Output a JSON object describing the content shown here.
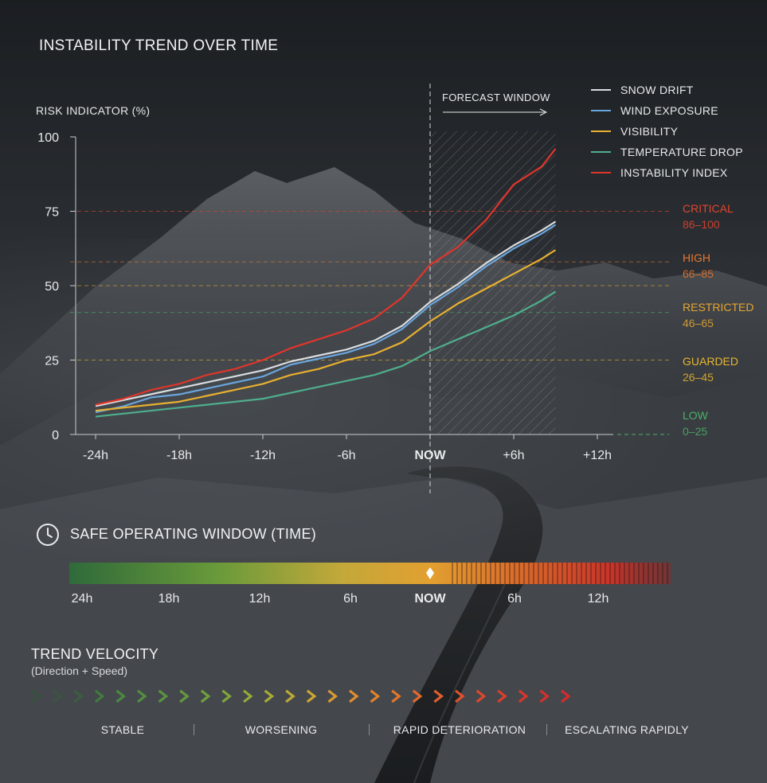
{
  "title": "INSTABILITY TREND OVER TIME",
  "chart_data": {
    "type": "line",
    "ylabel": "RISK INDICATOR (%)",
    "ylim": [
      0,
      100
    ],
    "yticks": [
      "0",
      "25",
      "50",
      "75",
      "100"
    ],
    "xticks": [
      "-24h",
      "-18h",
      "-12h",
      "-6h",
      "NOW",
      "+6h",
      "+12h"
    ],
    "x": [
      -24,
      -22,
      -20,
      -18,
      -16,
      -14,
      -12,
      -10,
      -8,
      -6,
      -4,
      -2,
      0,
      2,
      4,
      6,
      8,
      9
    ],
    "forecast_label": "FORECAST WINDOW",
    "forecast_range": [
      0,
      9
    ],
    "series": [
      {
        "name": "SNOW DRIFT",
        "color": "#d8dde2",
        "values": [
          9,
          11,
          13,
          15,
          17,
          19,
          21,
          24,
          26,
          28,
          31,
          36,
          44,
          50,
          57,
          63,
          68,
          71
        ]
      },
      {
        "name": "WIND EXPOSURE",
        "color": "#6aa6de",
        "values": [
          8,
          10,
          13,
          14,
          16,
          18,
          20,
          24,
          26,
          28,
          31,
          36,
          44,
          50,
          57,
          63,
          68,
          71
        ]
      },
      {
        "name": "VISIBILITY",
        "color": "#e8b030",
        "values": [
          8,
          9,
          10,
          11,
          13,
          15,
          17,
          20,
          22,
          25,
          27,
          31,
          38,
          44,
          49,
          54,
          59,
          62
        ]
      },
      {
        "name": "TEMPERATURE DROP",
        "color": "#4fae8c",
        "values": [
          6,
          7,
          8,
          9,
          10,
          11,
          12,
          14,
          16,
          18,
          20,
          23,
          28,
          32,
          36,
          40,
          45,
          48
        ]
      },
      {
        "name": "INSTABILITY INDEX",
        "color": "#e0352b",
        "values": [
          10,
          12,
          15,
          17,
          20,
          22,
          25,
          29,
          32,
          35,
          39,
          46,
          57,
          63,
          72,
          84,
          90,
          96
        ]
      }
    ],
    "thresholds": [
      {
        "label": "CRITICAL",
        "range": "86–100",
        "color": "#e2452f",
        "level": 75
      },
      {
        "label": "HIGH",
        "range": "66–85",
        "color": "#e8782f",
        "level": 60
      },
      {
        "label": "RESTRICTED",
        "range": "46–65",
        "color": "#e8a530",
        "level": 45
      },
      {
        "label": "GUARDED",
        "range": "26–45",
        "color": "#e8b530",
        "level": 25
      },
      {
        "label": "LOW",
        "range": "0–25",
        "color": "#4caf6a",
        "level": 0
      }
    ]
  },
  "safe_window": {
    "title": "SAFE OPERATING WINDOW (TIME)",
    "ticks": [
      "24h",
      "18h",
      "12h",
      "6h",
      "NOW",
      "6h",
      "12h"
    ]
  },
  "trend_velocity": {
    "title": "TREND VELOCITY",
    "subtitle": "(Direction + Speed)",
    "phases": [
      "STABLE",
      "WORSENING",
      "RAPID DETERIORATION",
      "ESCALATING RAPIDLY"
    ]
  }
}
